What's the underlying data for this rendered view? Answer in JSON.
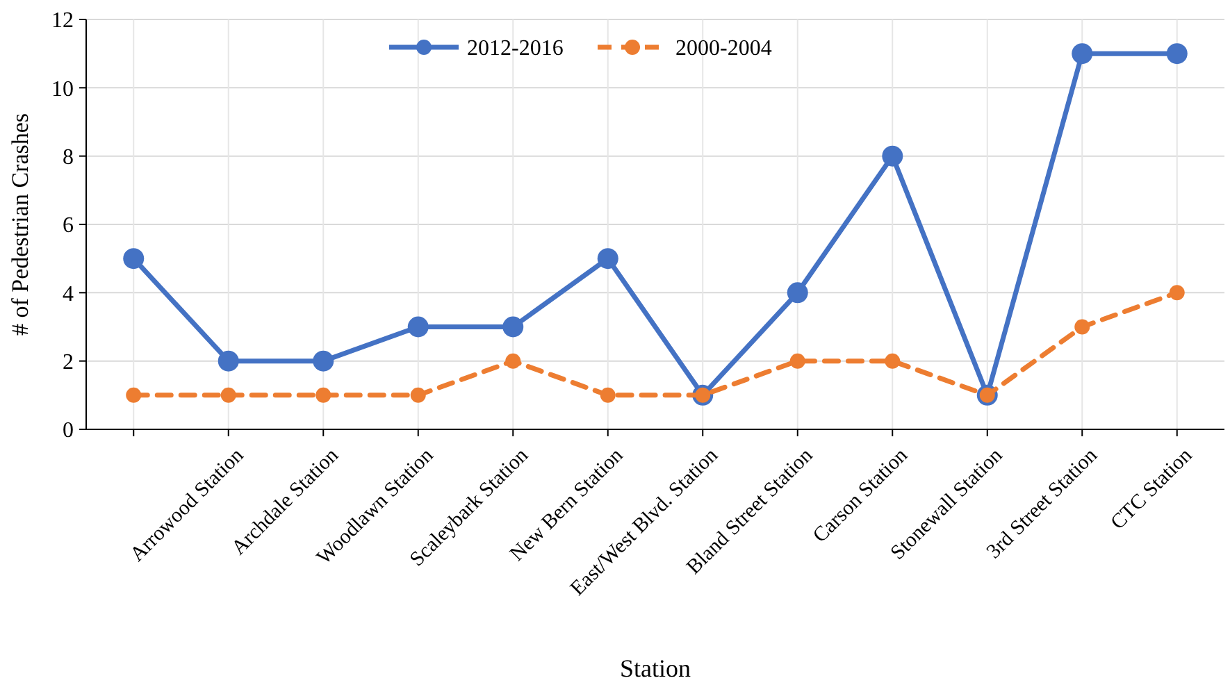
{
  "chart_data": {
    "type": "line",
    "xlabel": "Station",
    "ylabel": "# of Pedestrian Crashes",
    "categories": [
      null,
      "Arrowood Station",
      "Archdale Station",
      "Woodlawn Station",
      "Scaleybark Station",
      "New Bern Station",
      "East/West Blvd. Station",
      "Bland Street Station",
      "Carson Station",
      "Stonewall Station",
      "3rd Street Station",
      "CTC Station"
    ],
    "series": [
      {
        "name": "2012-2016",
        "color": "#4472c4",
        "line_style": "solid",
        "values": [
          5,
          2,
          2,
          3,
          3,
          5,
          1,
          4,
          8,
          1,
          11,
          11
        ]
      },
      {
        "name": "2000-2004",
        "color": "#ed7d31",
        "line_style": "dashed",
        "values": [
          1,
          1,
          1,
          1,
          2,
          1,
          1,
          2,
          2,
          1,
          3,
          4
        ]
      }
    ],
    "ylim": [
      0,
      12
    ],
    "yticks": [
      0,
      2,
      4,
      6,
      8,
      10,
      12
    ],
    "grid": true,
    "legend": "top",
    "marker": "circle"
  }
}
